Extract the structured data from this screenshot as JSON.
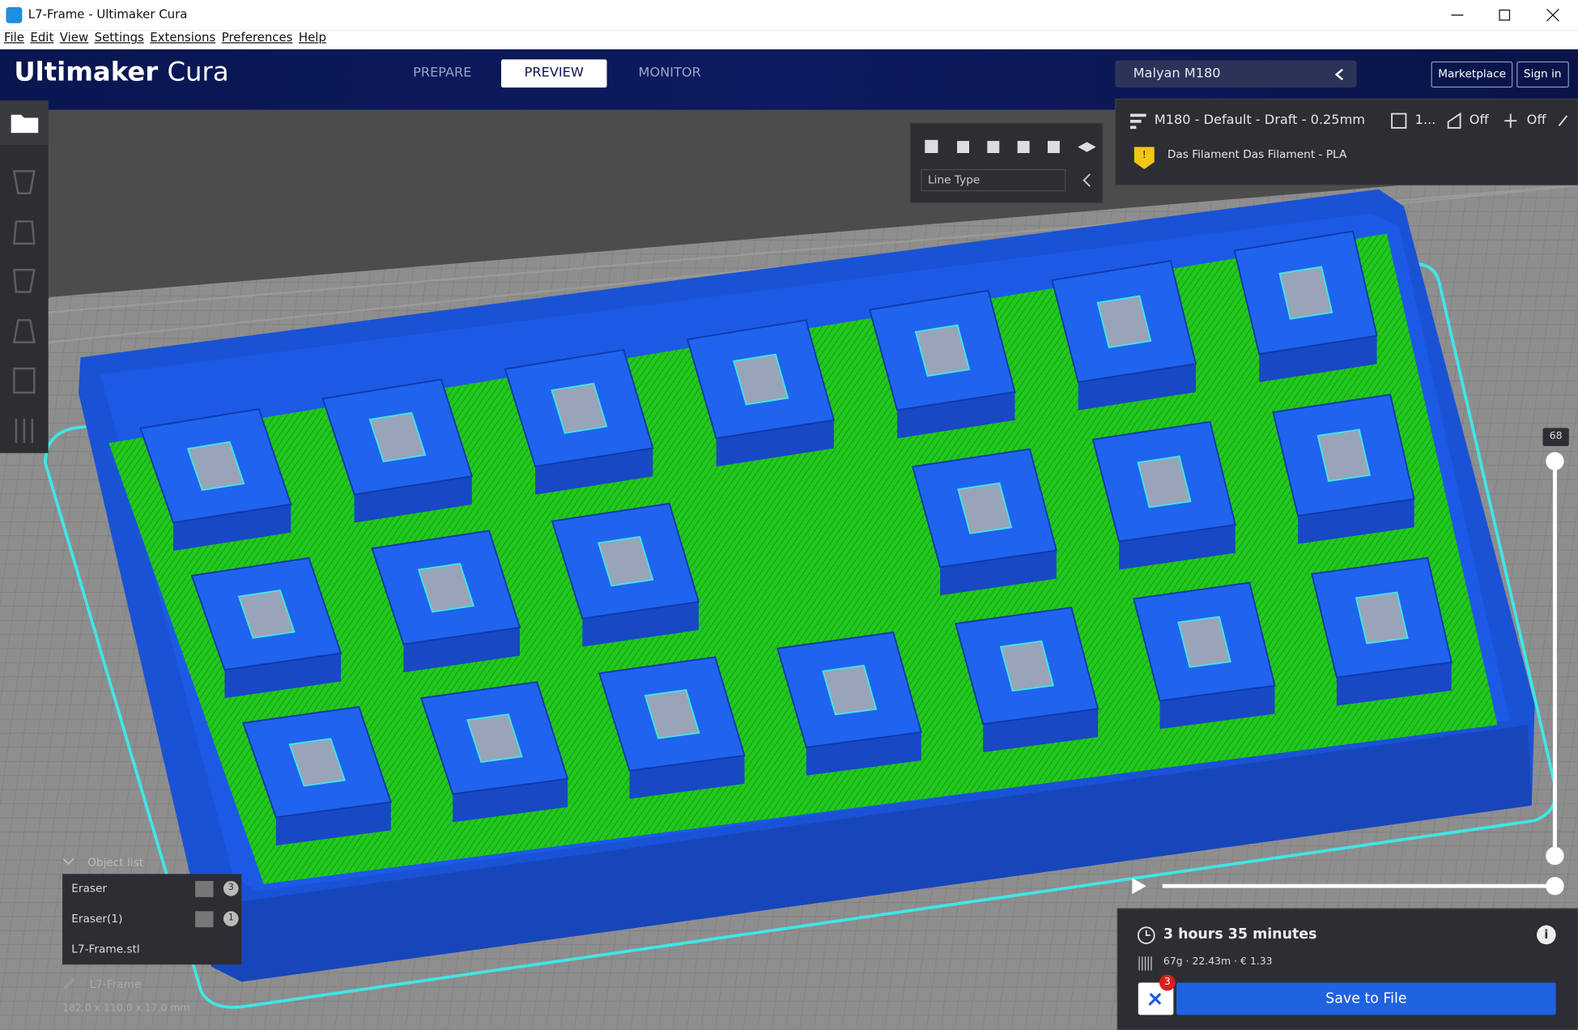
{
  "window": {
    "title": "L7-Frame - Ultimaker Cura"
  },
  "menu": [
    "File",
    "Edit",
    "View",
    "Settings",
    "Extensions",
    "Preferences",
    "Help"
  ],
  "header": {
    "brand": "Ultimaker",
    "product": "Cura",
    "tabs": [
      "PREPARE",
      "PREVIEW",
      "MONITOR"
    ],
    "printer": "Malyan M180",
    "marketplace": "Marketplace",
    "sign_in": "Sign in"
  },
  "print_setup": {
    "profile": "M180 - Default - Draft - 0.25mm",
    "infill": "1...",
    "support": "Off",
    "adhesion": "Off",
    "material": "Das Filament Das Filament - PLA"
  },
  "view_panel": {
    "color_scheme": "Line Type"
  },
  "layer_slider": {
    "layer": 68
  },
  "object_list": {
    "title": "Object list",
    "items": [
      {
        "name": "Eraser",
        "badge": 3
      },
      {
        "name": "Eraser(1)",
        "badge": 1
      },
      {
        "name": "L7-Frame.stl"
      }
    ]
  },
  "model": {
    "name": "L7-Frame",
    "dimensions": "182.0 x 110.0 x 17.0 mm"
  },
  "estimate": {
    "time": "3 hours 35 minutes",
    "material": "67g · 22.43m · € 1.33",
    "action": "Save to File",
    "notifications": 3
  }
}
